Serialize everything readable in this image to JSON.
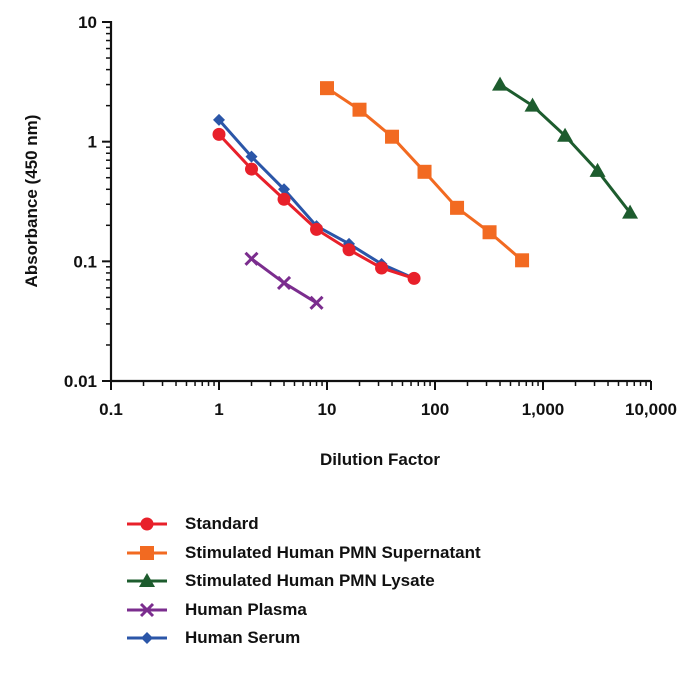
{
  "chart_data": {
    "type": "line",
    "xlabel": "Dilution Factor",
    "ylabel": "Absorbance (450 nm)",
    "xscale": "log",
    "yscale": "log",
    "xlim": [
      0.1,
      10000
    ],
    "ylim": [
      0.01,
      10
    ],
    "xticks": [
      {
        "value": 0.1,
        "label": "0.1"
      },
      {
        "value": 1,
        "label": "1"
      },
      {
        "value": 10,
        "label": "10"
      },
      {
        "value": 100,
        "label": "100"
      },
      {
        "value": 1000,
        "label": "1,000"
      },
      {
        "value": 10000,
        "label": "10,000"
      }
    ],
    "yticks": [
      {
        "value": 0.01,
        "label": "0.01"
      },
      {
        "value": 0.1,
        "label": "0.1"
      },
      {
        "value": 1,
        "label": "1"
      },
      {
        "value": 10,
        "label": "10"
      }
    ],
    "grid": false,
    "legend_position": "bottom",
    "series": [
      {
        "name": "Standard",
        "color": "#e8202a",
        "marker": "circle",
        "x": [
          1,
          2,
          4,
          8,
          16,
          32,
          64
        ],
        "y": [
          1.15,
          0.59,
          0.33,
          0.185,
          0.125,
          0.088,
          0.072
        ]
      },
      {
        "name": "Stimulated Human PMN Supernatant",
        "color": "#f26a21",
        "marker": "square",
        "x": [
          10,
          20,
          40,
          80,
          160,
          320,
          640
        ],
        "y": [
          2.8,
          1.85,
          1.1,
          0.56,
          0.28,
          0.175,
          0.102
        ]
      },
      {
        "name": "Stimulated Human PMN Lysate",
        "color": "#1d5c2e",
        "marker": "triangle",
        "x": [
          400,
          800,
          1600,
          3200,
          6400
        ],
        "y": [
          3.0,
          2.0,
          1.12,
          0.57,
          0.255
        ]
      },
      {
        "name": "Human Plasma",
        "color": "#7b2d8e",
        "marker": "x",
        "x": [
          2,
          4,
          8
        ],
        "y": [
          0.105,
          0.066,
          0.045
        ]
      },
      {
        "name": "Human Serum",
        "color": "#2b56a8",
        "marker": "diamond",
        "x": [
          1,
          2,
          4,
          8,
          16,
          32,
          64
        ],
        "y": [
          1.52,
          0.75,
          0.4,
          0.197,
          0.14,
          0.095,
          0.072
        ]
      }
    ]
  }
}
